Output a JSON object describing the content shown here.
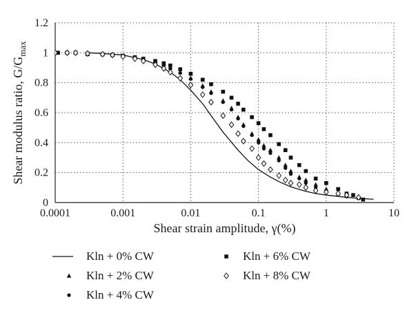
{
  "chart_data": {
    "type": "scatter",
    "x_scale": "log",
    "xlim": [
      0.0001,
      10
    ],
    "ylim": [
      0,
      1.2
    ],
    "grid": true,
    "xlabel": "Shear strain amplitude, γ(%)",
    "ylabel": "Shear modulus ratio, G/G",
    "ylabel_subscript": "max",
    "x_ticks": [
      0.0001,
      0.001,
      0.01,
      0.1,
      1,
      10
    ],
    "x_tick_labels": [
      "0.0001",
      "0.001",
      "0.01",
      "0.1",
      "1",
      "10"
    ],
    "y_ticks": [
      0,
      0.2,
      0.4,
      0.6,
      0.8,
      1,
      1.2
    ],
    "y_tick_labels": [
      "0",
      "0.2",
      "0.4",
      "0.6",
      "0.8",
      "1",
      "1.2"
    ],
    "legend_placement": "bottom",
    "series": [
      {
        "name": "Kln + 0% CW",
        "marker": "line",
        "points": [
          [
            0.0003,
            1.0
          ],
          [
            0.0005,
            0.995
          ],
          [
            0.001,
            0.985
          ],
          [
            0.002,
            0.955
          ],
          [
            0.003,
            0.925
          ],
          [
            0.005,
            0.87
          ],
          [
            0.007,
            0.82
          ],
          [
            0.01,
            0.75
          ],
          [
            0.015,
            0.66
          ],
          [
            0.02,
            0.58
          ],
          [
            0.03,
            0.47
          ],
          [
            0.05,
            0.35
          ],
          [
            0.07,
            0.28
          ],
          [
            0.1,
            0.22
          ],
          [
            0.15,
            0.17
          ],
          [
            0.2,
            0.14
          ],
          [
            0.3,
            0.105
          ],
          [
            0.5,
            0.075
          ],
          [
            0.7,
            0.06
          ],
          [
            1,
            0.05
          ],
          [
            2,
            0.035
          ],
          [
            3,
            0.028
          ],
          [
            5,
            0.022
          ]
        ]
      },
      {
        "name": "Kln + 2% CW",
        "marker": "triangle",
        "points": [
          [
            0.00011,
            1.0
          ],
          [
            0.00015,
            1.0
          ],
          [
            0.0002,
            1.0
          ],
          [
            0.0003,
            0.99
          ],
          [
            0.0005,
            0.99
          ],
          [
            0.0007,
            0.985
          ],
          [
            0.001,
            0.98
          ],
          [
            0.0015,
            0.97
          ],
          [
            0.002,
            0.96
          ],
          [
            0.003,
            0.94
          ],
          [
            0.004,
            0.92
          ],
          [
            0.005,
            0.9
          ],
          [
            0.007,
            0.87
          ],
          [
            0.01,
            0.83
          ],
          [
            0.015,
            0.78
          ],
          [
            0.02,
            0.74
          ],
          [
            0.03,
            0.68
          ],
          [
            0.04,
            0.63
          ],
          [
            0.05,
            0.57
          ],
          [
            0.06,
            0.52
          ],
          [
            0.08,
            0.46
          ],
          [
            0.1,
            0.42
          ],
          [
            0.12,
            0.38
          ],
          [
            0.15,
            0.35
          ],
          [
            0.2,
            0.3
          ],
          [
            0.25,
            0.25
          ],
          [
            0.3,
            0.21
          ],
          [
            0.4,
            0.17
          ],
          [
            0.5,
            0.15
          ],
          [
            0.7,
            0.12
          ],
          [
            1,
            0.09
          ],
          [
            1.5,
            0.06
          ],
          [
            2,
            0.05
          ],
          [
            3,
            0.03
          ]
        ]
      },
      {
        "name": "Kln + 4% CW",
        "marker": "dot",
        "points": [
          [
            0.00011,
            1.0
          ],
          [
            0.00015,
            1.0
          ],
          [
            0.0002,
            1.0
          ],
          [
            0.0003,
            0.995
          ],
          [
            0.0005,
            0.99
          ],
          [
            0.0007,
            0.985
          ],
          [
            0.001,
            0.975
          ],
          [
            0.0015,
            0.965
          ],
          [
            0.002,
            0.955
          ],
          [
            0.003,
            0.935
          ],
          [
            0.004,
            0.915
          ],
          [
            0.005,
            0.895
          ],
          [
            0.007,
            0.865
          ],
          [
            0.01,
            0.825
          ],
          [
            0.015,
            0.77
          ],
          [
            0.02,
            0.73
          ],
          [
            0.03,
            0.67
          ],
          [
            0.04,
            0.62
          ],
          [
            0.05,
            0.56
          ],
          [
            0.06,
            0.51
          ],
          [
            0.08,
            0.45
          ],
          [
            0.1,
            0.4
          ],
          [
            0.12,
            0.36
          ],
          [
            0.15,
            0.33
          ],
          [
            0.2,
            0.28
          ],
          [
            0.25,
            0.23
          ],
          [
            0.3,
            0.19
          ],
          [
            0.4,
            0.16
          ],
          [
            0.5,
            0.13
          ],
          [
            0.7,
            0.1
          ],
          [
            1,
            0.08
          ],
          [
            1.5,
            0.06
          ],
          [
            2,
            0.04
          ],
          [
            3,
            0.03
          ]
        ]
      },
      {
        "name": "Kln + 6% CW",
        "marker": "square",
        "points": [
          [
            0.00011,
            1.0
          ],
          [
            0.00015,
            1.0
          ],
          [
            0.0002,
            1.0
          ],
          [
            0.0003,
            0.995
          ],
          [
            0.0005,
            0.99
          ],
          [
            0.0007,
            0.985
          ],
          [
            0.001,
            0.98
          ],
          [
            0.0015,
            0.97
          ],
          [
            0.002,
            0.96
          ],
          [
            0.003,
            0.945
          ],
          [
            0.004,
            0.93
          ],
          [
            0.005,
            0.915
          ],
          [
            0.007,
            0.89
          ],
          [
            0.01,
            0.86
          ],
          [
            0.015,
            0.82
          ],
          [
            0.02,
            0.79
          ],
          [
            0.03,
            0.74
          ],
          [
            0.04,
            0.7
          ],
          [
            0.05,
            0.66
          ],
          [
            0.06,
            0.62
          ],
          [
            0.08,
            0.57
          ],
          [
            0.1,
            0.53
          ],
          [
            0.12,
            0.49
          ],
          [
            0.15,
            0.45
          ],
          [
            0.2,
            0.39
          ],
          [
            0.25,
            0.35
          ],
          [
            0.3,
            0.3
          ],
          [
            0.4,
            0.25
          ],
          [
            0.5,
            0.21
          ],
          [
            0.7,
            0.16
          ],
          [
            1,
            0.13
          ],
          [
            1.5,
            0.09
          ],
          [
            2,
            0.06
          ],
          [
            2.5,
            0.05
          ],
          [
            3.5,
            0.02
          ]
        ]
      },
      {
        "name": "Kln + 8% CW",
        "marker": "diamond",
        "points": [
          [
            0.0001,
            1.0
          ],
          [
            0.00015,
            1.0
          ],
          [
            0.0002,
            1.0
          ],
          [
            0.0003,
            0.995
          ],
          [
            0.0005,
            0.99
          ],
          [
            0.0007,
            0.985
          ],
          [
            0.001,
            0.975
          ],
          [
            0.0015,
            0.96
          ],
          [
            0.002,
            0.945
          ],
          [
            0.003,
            0.92
          ],
          [
            0.004,
            0.895
          ],
          [
            0.005,
            0.87
          ],
          [
            0.007,
            0.83
          ],
          [
            0.01,
            0.785
          ],
          [
            0.015,
            0.72
          ],
          [
            0.02,
            0.67
          ],
          [
            0.03,
            0.58
          ],
          [
            0.04,
            0.52
          ],
          [
            0.05,
            0.46
          ],
          [
            0.06,
            0.41
          ],
          [
            0.08,
            0.36
          ],
          [
            0.1,
            0.3
          ],
          [
            0.12,
            0.26
          ],
          [
            0.15,
            0.22
          ],
          [
            0.2,
            0.18
          ],
          [
            0.25,
            0.15
          ],
          [
            0.3,
            0.13
          ],
          [
            0.4,
            0.12
          ],
          [
            0.5,
            0.1
          ],
          [
            0.7,
            0.08
          ],
          [
            1,
            0.07
          ],
          [
            1.5,
            0.06
          ],
          [
            2,
            0.05
          ],
          [
            3,
            0.035
          ]
        ]
      }
    ]
  }
}
